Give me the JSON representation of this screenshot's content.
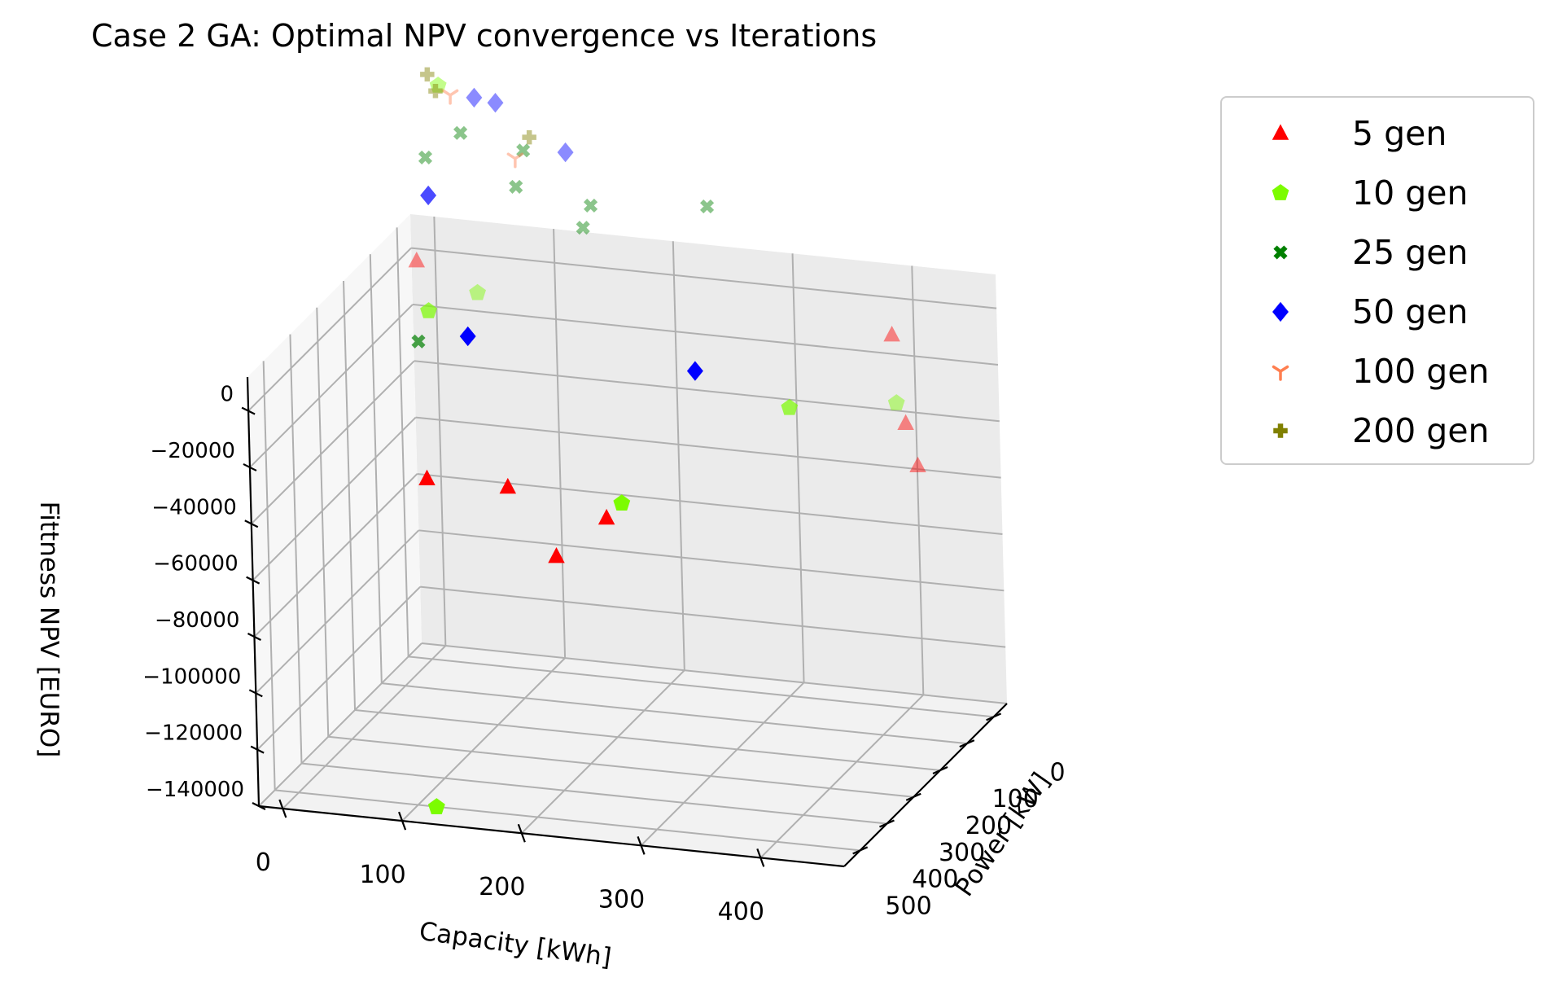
{
  "chart_data": {
    "type": "scatter",
    "projection": "3d",
    "title": "Case 2 GA: Optimal NPV convergence vs Iterations",
    "xlabel": "Capacity [kWh]",
    "ylabel": "Power [kW]",
    "zlabel": "Fittness NPV [EURO]",
    "x_ticks": [
      "0",
      "100",
      "200",
      "300",
      "400"
    ],
    "y_ticks": [
      "0",
      "100",
      "200",
      "300",
      "400",
      "500"
    ],
    "z_ticks": [
      "0",
      "−20000",
      "−40000",
      "−60000",
      "−80000",
      "−100000",
      "−120000",
      "−140000"
    ],
    "xlim": [
      -20,
      470
    ],
    "ylim": [
      -50,
      560
    ],
    "zlim": [
      -140000,
      12000
    ],
    "grid": true,
    "legend_position": "upper-right (outside)",
    "series": [
      {
        "name": "5 gen",
        "marker": "triangle",
        "color": "#ff0000",
        "points": [
          [
            400,
            30,
            -5000
          ],
          [
            405,
            10,
            -38000
          ],
          [
            420,
            35,
            -50000
          ],
          [
            210,
            450,
            -52000
          ],
          [
            180,
            490,
            -25000
          ],
          [
            230,
            350,
            -47000
          ],
          [
            110,
            480,
            -26000
          ],
          [
            5,
            40,
            5000
          ]
        ]
      },
      {
        "name": "10 gen",
        "marker": "pentagon",
        "color": "#7cfc00",
        "points": [
          [
            120,
            520,
            -138000
          ],
          [
            250,
            380,
            -38000
          ],
          [
            340,
            150,
            -22000
          ],
          [
            400,
            20,
            -30000
          ],
          [
            60,
            60,
            -2000
          ],
          [
            30,
            110,
            -5000
          ],
          [
            20,
            10,
            65000
          ]
        ]
      },
      {
        "name": "25 gen",
        "marker": "x",
        "color": "#008000",
        "points": [
          [
            30,
            150,
            -12000
          ],
          [
            10,
            20,
            40000
          ],
          [
            40,
            20,
            50000
          ],
          [
            90,
            10,
            45000
          ],
          [
            90,
            40,
            35000
          ],
          [
            150,
            30,
            30000
          ],
          [
            150,
            60,
            25000
          ],
          [
            250,
            40,
            35000
          ]
        ]
      },
      {
        "name": "50 gen",
        "marker": "diamond",
        "color": "#0000ff",
        "points": [
          [
            90,
            230,
            0
          ],
          [
            280,
            230,
            -4000
          ],
          [
            30,
            100,
            35000
          ],
          [
            50,
            10,
            62000
          ],
          [
            70,
            20,
            62000
          ],
          [
            130,
            30,
            48000
          ]
        ]
      },
      {
        "name": "100 gen",
        "marker": "tri_down",
        "color": "#ff7f50",
        "points": [
          [
            90,
            40,
            45000
          ],
          [
            30,
            10,
            62000
          ]
        ]
      },
      {
        "name": "200 gen",
        "marker": "plus",
        "color": "#808000",
        "points": [
          [
            10,
            5,
            68000
          ],
          [
            100,
            30,
            52000
          ],
          [
            20,
            20,
            64000
          ]
        ]
      }
    ]
  }
}
